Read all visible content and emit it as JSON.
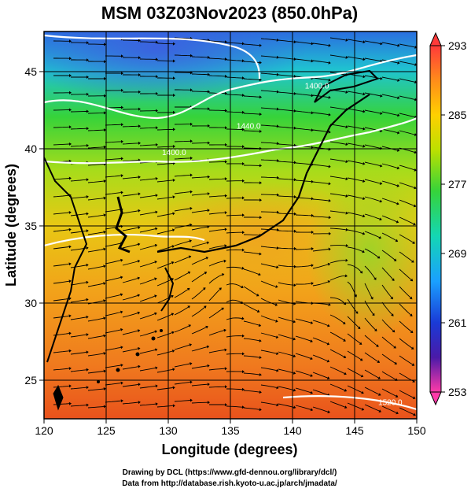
{
  "title": "MSM 03Z03Nov2023 (850.0hPa)",
  "x_axis": {
    "label": "Longitude (degrees)",
    "min": 120,
    "max": 150,
    "ticks": [
      "120",
      "125",
      "130",
      "135",
      "140",
      "145",
      "150"
    ],
    "tick_values": [
      120,
      125,
      130,
      135,
      140,
      145,
      150
    ]
  },
  "y_axis": {
    "label": "Latitude  (degrees)",
    "min": 22.5,
    "max": 47.6,
    "ticks": [
      "25",
      "30",
      "35",
      "40",
      "45"
    ],
    "tick_values": [
      25,
      30,
      35,
      40,
      45
    ]
  },
  "colorbar": {
    "labels": [
      "293",
      "285",
      "277",
      "269",
      "261",
      "253"
    ],
    "values": [
      293,
      285,
      277,
      269,
      261,
      253
    ],
    "min": 253,
    "max": 293,
    "colors": [
      "#ff3a3a",
      "#ff8c1a",
      "#ffd000",
      "#bde000",
      "#36d33a",
      "#14d6b4",
      "#1aa0ff",
      "#1a3ad6",
      "#4a1aa8",
      "#b01aa0",
      "#ff3aa8"
    ]
  },
  "contour_labels": [
    {
      "text": "1400.0",
      "lon": 129.5,
      "lat": 39.6
    },
    {
      "text": "1400.0",
      "lon": 141.0,
      "lat": 43.9
    },
    {
      "text": "1440.0",
      "lon": 135.5,
      "lat": 41.3
    },
    {
      "text": "1520.0",
      "lon": 146.9,
      "lat": 23.4
    }
  ],
  "grid": true,
  "credits": {
    "line1": "Drawing by DCL (https://www.gfd-dennou.org/library/dcl/)",
    "line2": "Data from http://database.rish.kyoto-u.ac.jp/arch/jmadata/"
  }
}
